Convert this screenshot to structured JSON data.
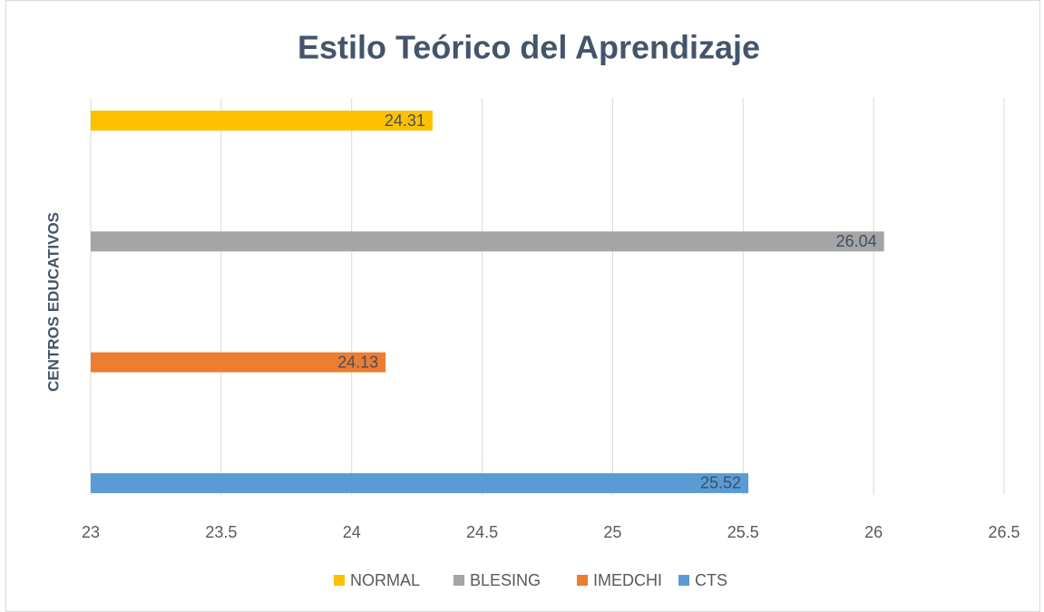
{
  "chart_data": {
    "type": "barh",
    "title": "Estilo Teórico del Aprendizaje",
    "ylabel": "CENTROS EDUCATIVOS",
    "categories": [
      null
    ],
    "series": [
      {
        "name": "NORMAL",
        "color": "#ffc000",
        "values": [
          24.31
        ]
      },
      {
        "name": "BLESING",
        "color": "#a5a5a5",
        "values": [
          26.04
        ]
      },
      {
        "name": "IMEDCHI",
        "color": "#ed7d31",
        "values": [
          24.13
        ]
      },
      {
        "name": "CTS",
        "color": "#5b9bd5",
        "values": [
          25.52
        ]
      }
    ],
    "xlim": [
      23,
      26.5
    ],
    "xticks": [
      23,
      23.5,
      24,
      24.5,
      25,
      25.5,
      26,
      26.5
    ],
    "grid": true,
    "legend": "bottom"
  }
}
